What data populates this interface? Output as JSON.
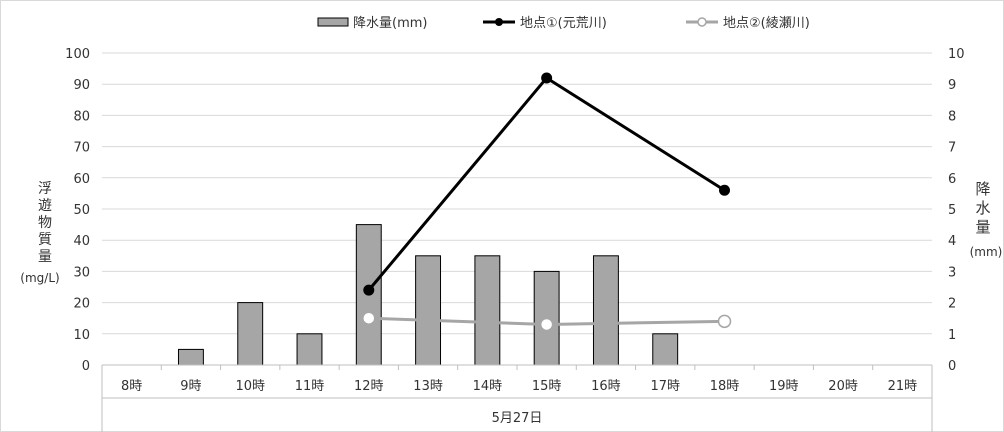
{
  "chart_data": {
    "type": "bar",
    "title": "",
    "categories": [
      "8時",
      "9時",
      "10時",
      "11時",
      "12時",
      "13時",
      "14時",
      "15時",
      "16時",
      "17時",
      "18時",
      "19時",
      "20時",
      "21時"
    ],
    "group_label": "5月27日",
    "y_left": {
      "label": "浮遊物質量",
      "unit": "(mg/L)",
      "min": 0,
      "max": 100,
      "step": 10,
      "ticks": [
        "0",
        "10",
        "20",
        "30",
        "40",
        "50",
        "60",
        "70",
        "80",
        "90",
        "100"
      ]
    },
    "y_right": {
      "label": "降水量",
      "unit": "(mm)",
      "min": 0,
      "max": 10,
      "step": 1,
      "ticks": [
        "0",
        "1",
        "2",
        "3",
        "4",
        "5",
        "6",
        "7",
        "8",
        "9",
        "10"
      ]
    },
    "grid": true,
    "legend_position": "top",
    "series": [
      {
        "name": "降水量(mm)",
        "type": "bar",
        "axis": "right",
        "color": "#a6a6a6",
        "values": [
          0,
          0.5,
          2.0,
          1.0,
          4.5,
          3.5,
          3.5,
          3.0,
          3.5,
          1.0,
          0,
          0,
          0,
          0
        ]
      },
      {
        "name": "地点①(元荒川)",
        "type": "line",
        "axis": "left",
        "color": "#000000",
        "marker": "filled-circle",
        "values": [
          null,
          null,
          null,
          null,
          24,
          null,
          null,
          92,
          null,
          null,
          56,
          null,
          null,
          null
        ]
      },
      {
        "name": "地点②(綾瀬川)",
        "type": "line",
        "axis": "left",
        "color": "#a6a6a6",
        "marker": "open-circle",
        "values": [
          null,
          null,
          null,
          null,
          15,
          null,
          null,
          13,
          null,
          null,
          14,
          null,
          null,
          null
        ]
      }
    ]
  }
}
